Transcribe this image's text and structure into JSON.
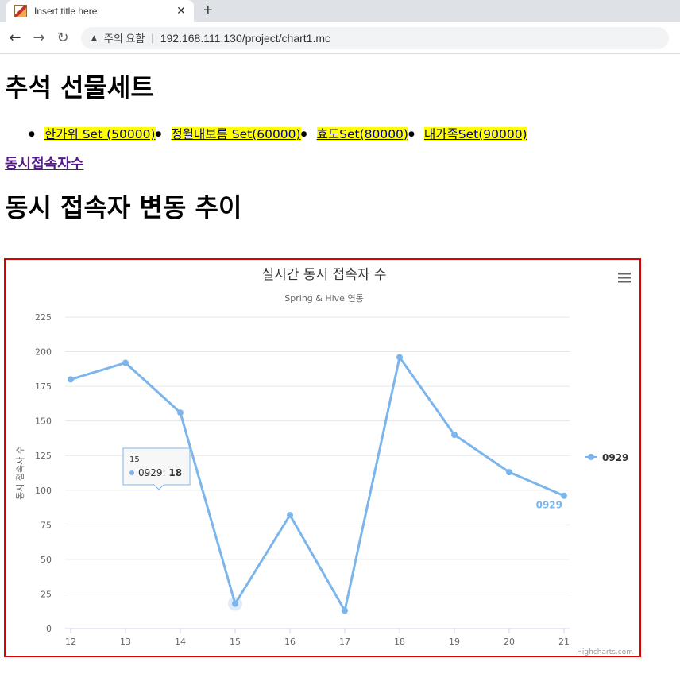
{
  "browser": {
    "tab_title": "Insert title here",
    "security_warning": "주의 요함",
    "url": "192.168.111.130/project/chart1.mc"
  },
  "page": {
    "title": "추석 선물세트",
    "gift_links": [
      "한가위 Set (50000)",
      "정월대보름 Set(60000)",
      "효도Set(80000)",
      "대가족Set(90000)"
    ],
    "connection_link": "동시접속자수",
    "section_title": "동시 접속자 변동 추이"
  },
  "chart_data": {
    "type": "line",
    "title": "실시간 동시 접속자 수",
    "subtitle": "Spring & Hive 연동",
    "ylabel": "동시 접속자 수",
    "xlabel": "",
    "x": [
      12,
      13,
      14,
      15,
      16,
      17,
      18,
      19,
      20,
      21
    ],
    "ylim": [
      0,
      225
    ],
    "yticks": [
      0,
      25,
      50,
      75,
      100,
      125,
      150,
      175,
      200,
      225
    ],
    "series": [
      {
        "name": "0929",
        "values": [
          180,
          192,
          156,
          18,
          82,
          13,
          196,
          140,
          113,
          96
        ],
        "color": "#7cb5ec"
      }
    ],
    "legend_position": "right",
    "grid": true,
    "tooltip": {
      "x": "15",
      "series": "0929",
      "value": "18"
    },
    "credits": "Highcharts.com",
    "menu_icon": "hamburger-menu-icon"
  }
}
